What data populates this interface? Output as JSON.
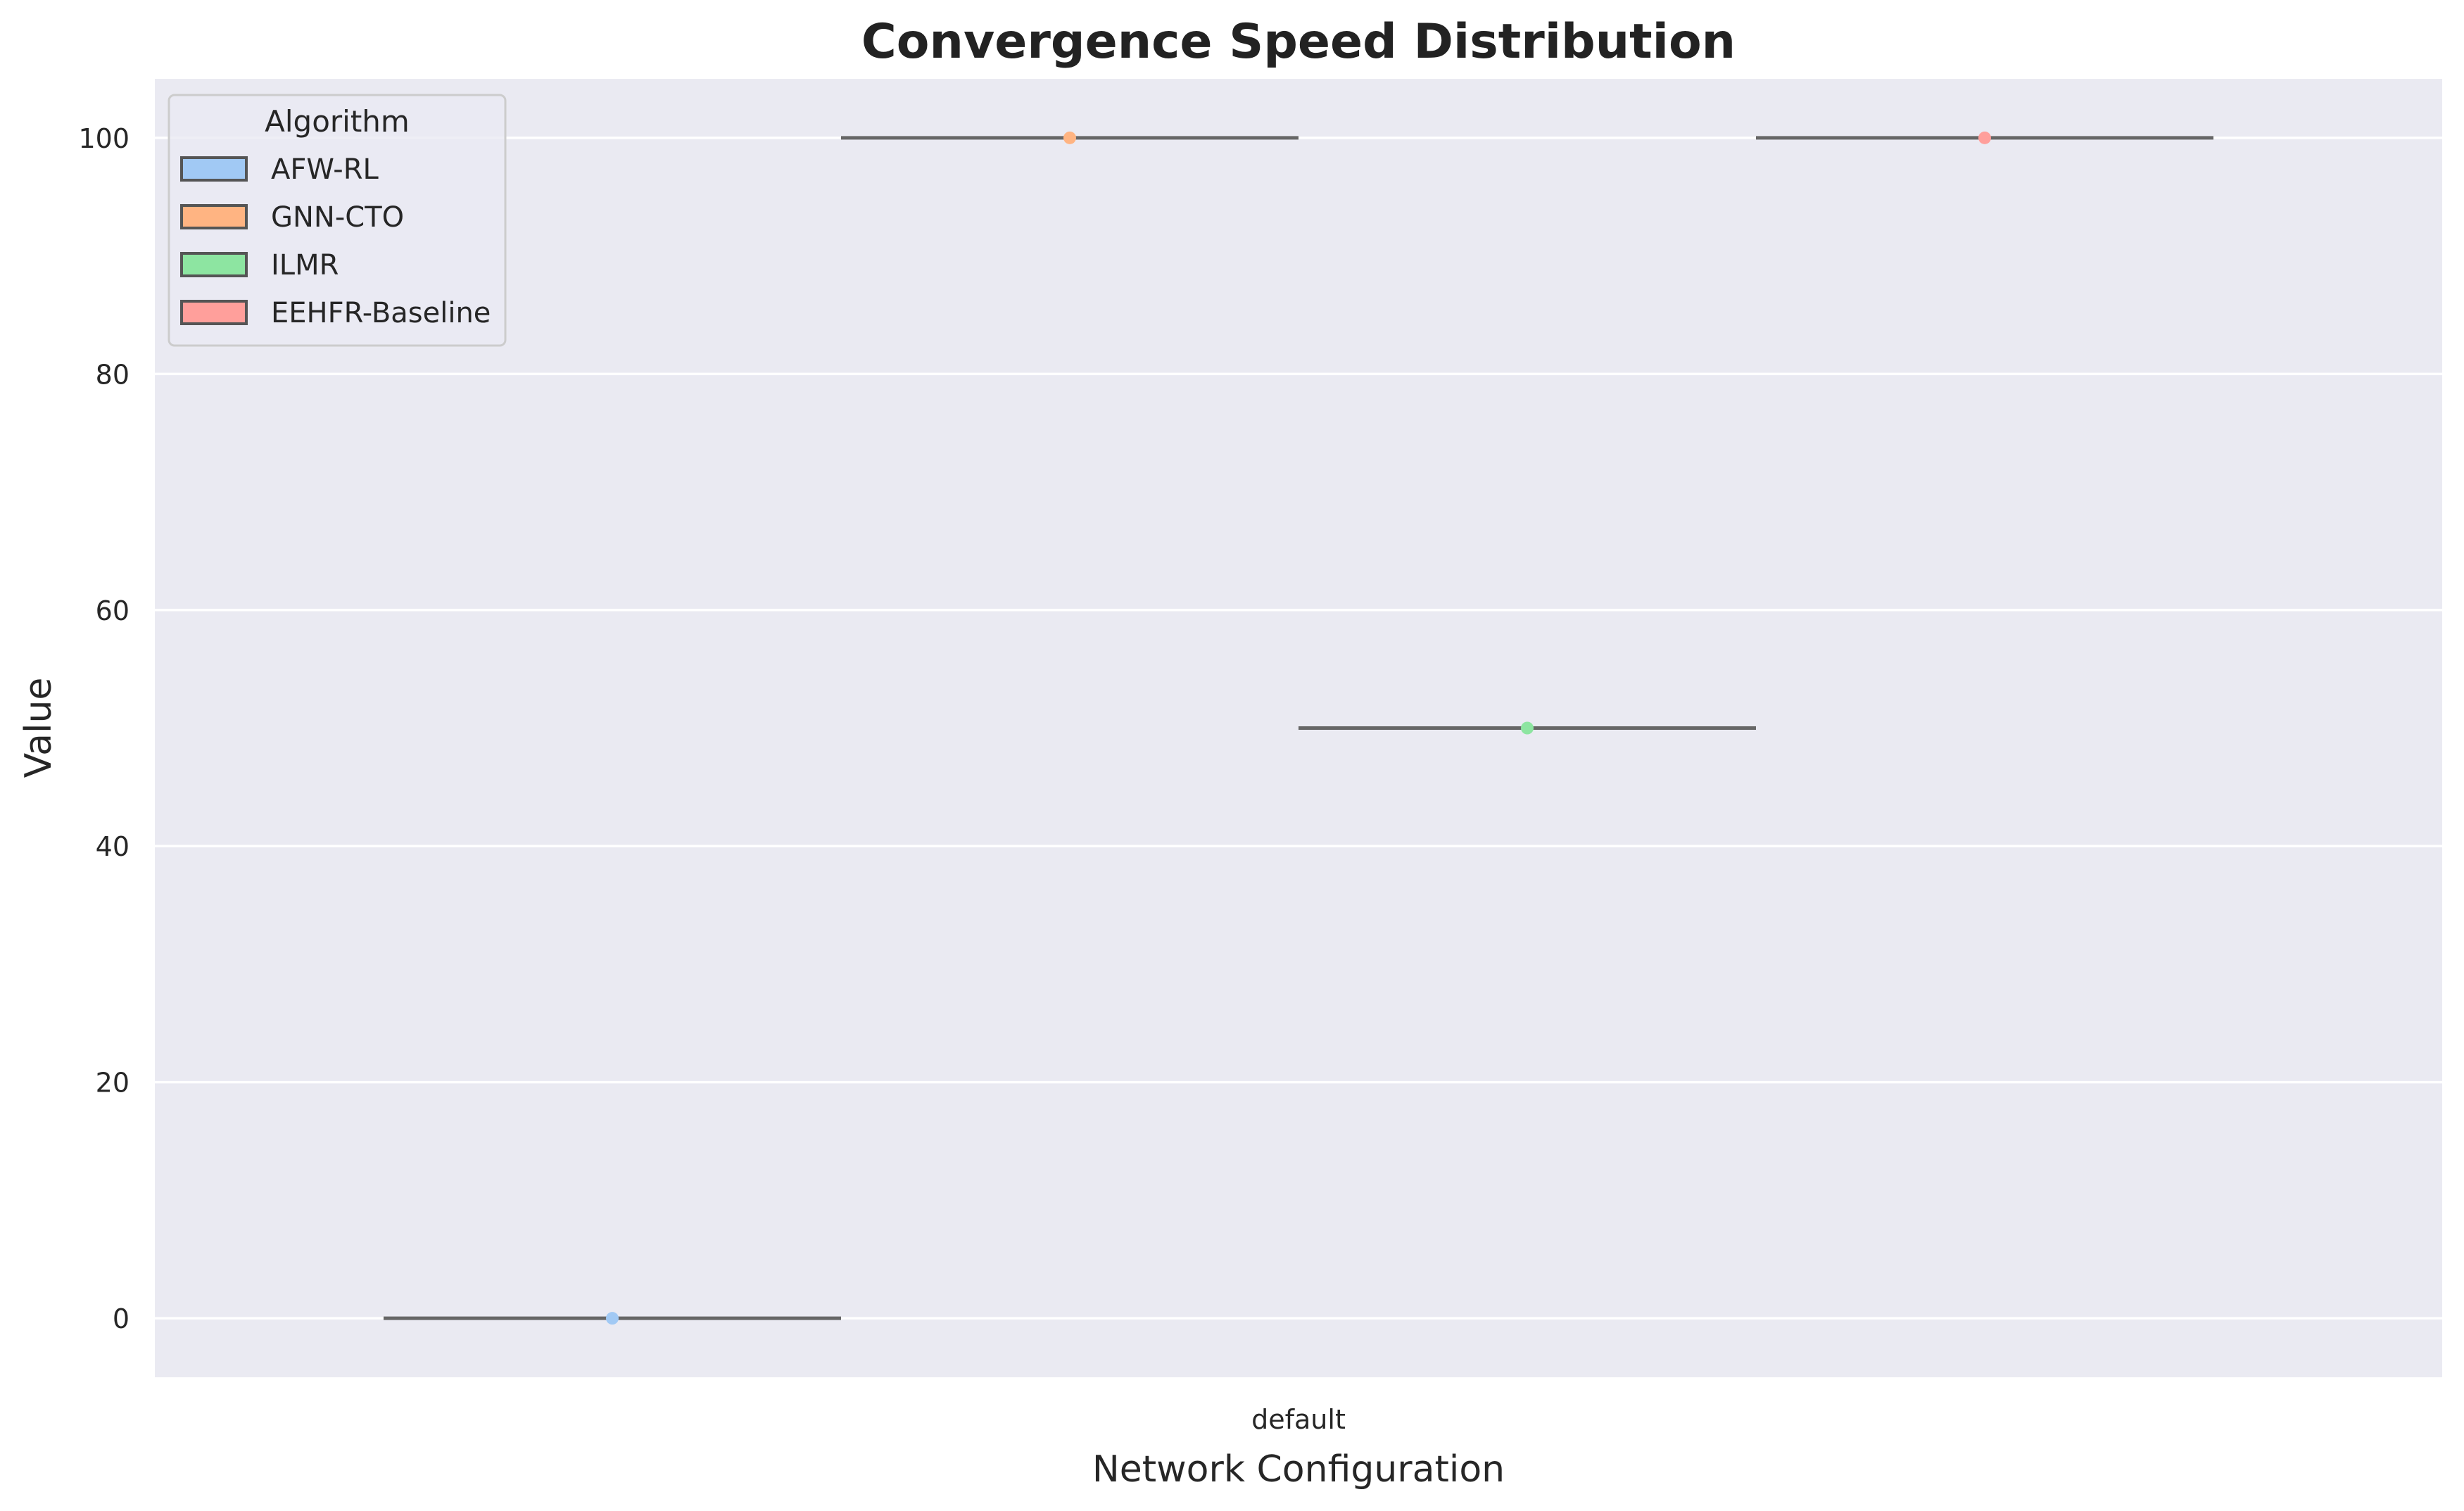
{
  "chart_data": {
    "type": "violin",
    "title": "Convergence Speed Distribution",
    "xlabel": "Network Configuration",
    "ylabel": "Value",
    "categories": [
      "default"
    ],
    "ylim": [
      -5,
      105
    ],
    "yticks": [
      0,
      20,
      40,
      60,
      80,
      100
    ],
    "grid": true,
    "legend": {
      "title": "Algorithm",
      "placement": "upper-left"
    },
    "series": [
      {
        "name": "AFW-RL",
        "values": [
          0
        ],
        "color": "#a1c9f4"
      },
      {
        "name": "GNN-CTO",
        "values": [
          100
        ],
        "color": "#ffb482"
      },
      {
        "name": "ILMR",
        "values": [
          50
        ],
        "color": "#8de5a1"
      },
      {
        "name": "EEHFR-Baseline",
        "values": [
          100
        ],
        "color": "#ff9f9b"
      }
    ]
  },
  "colors": {
    "plot_background": "#eaeaf2",
    "grid": "#ffffff",
    "line": "#666666"
  }
}
